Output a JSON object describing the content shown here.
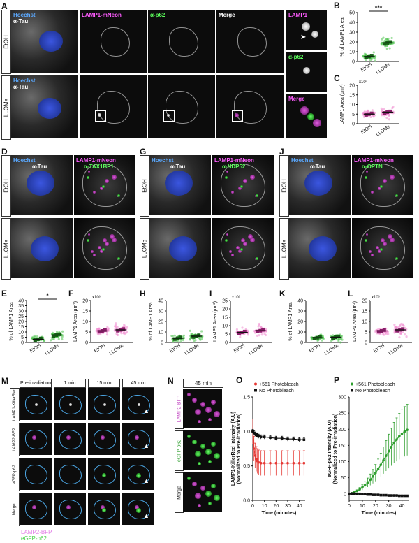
{
  "panels": {
    "A": {
      "letter": "A",
      "rows": [
        "EtOH",
        "LLOMe"
      ],
      "col1": {
        "a": "Hoechst",
        "b": "α-Tau"
      },
      "col2": "LAMP1-mNeon",
      "col3": "α-p62",
      "col4": "Merge",
      "inset": {
        "top": "LAMP1",
        "mid": "α-p62",
        "bot": "Merge"
      }
    },
    "D": {
      "letter": "D",
      "rows": [
        "EtOH",
        "LLOMe"
      ],
      "col1a": "Hoechst",
      "col1b": "α-Tau",
      "col2a": "LAMP1-mNeon",
      "col2b": "α-TAX1BP1"
    },
    "G": {
      "letter": "G",
      "rows": [
        "EtOH",
        "LLOMe"
      ],
      "col1a": "Hoechst",
      "col1b": "α-Tau",
      "col2a": "LAMP1-mNeon",
      "col2b": "α-NDP52"
    },
    "J": {
      "letter": "J",
      "rows": [
        "EtOH",
        "LLOMe"
      ],
      "col1a": "Hoechst",
      "col1b": "α-Tau",
      "col2a": "LAMP1-mNeon",
      "col2b": "α-OPTN"
    },
    "M": {
      "letter": "M",
      "cols": [
        "Pre-irradiation",
        "1 min",
        "15 min",
        "45 min"
      ],
      "rows": [
        "LAMP1-KillerRed",
        "LAMP2-BFP",
        "eGFP-p62",
        "Merge"
      ],
      "legend_a": "LAMP2-BFP",
      "legend_b": "eGFP-p62"
    },
    "N": {
      "letter": "N",
      "time": "45 min",
      "rows": [
        "LAMP2-BFP",
        "eGFP-p62",
        "Merge"
      ]
    }
  },
  "chart_data": [
    {
      "id": "B",
      "type": "scatter",
      "ylabel": "% of LAMP1 Area",
      "categories": [
        "EtOH",
        "LLOMe"
      ],
      "ylim": [
        0,
        50
      ],
      "yticks": [
        0,
        10,
        20,
        30,
        40,
        50
      ],
      "means": [
        5,
        19
      ],
      "sig": "***"
    },
    {
      "id": "C",
      "type": "scatter",
      "ylabel": "LAMP1 Area (μm²)",
      "exponent": "x10³",
      "categories": [
        "EtOH",
        "LLOMe"
      ],
      "ylim": [
        0,
        20
      ],
      "yticks": [
        0,
        5,
        10,
        15,
        20
      ],
      "means": [
        5,
        6
      ]
    },
    {
      "id": "E",
      "type": "scatter",
      "ylabel": "% of LAMP1 Area",
      "categories": [
        "EtOH",
        "LLOMe"
      ],
      "ylim": [
        0,
        40
      ],
      "yticks": [
        0,
        5,
        10,
        15,
        20,
        25,
        30,
        35,
        40
      ],
      "means": [
        3,
        7
      ],
      "sig": "*"
    },
    {
      "id": "F",
      "type": "scatter",
      "ylabel": "LAMP1 Area (μm²)",
      "exponent": "x10³",
      "categories": [
        "EtOH",
        "LLOMe"
      ],
      "ylim": [
        0,
        20
      ],
      "yticks": [
        0,
        5,
        10,
        15,
        20
      ],
      "means": [
        5.5,
        6
      ]
    },
    {
      "id": "H",
      "type": "scatter",
      "ylabel": "% of LAMP1 Area",
      "categories": [
        "EtOH",
        "LLOMe"
      ],
      "ylim": [
        0,
        40
      ],
      "yticks": [
        0,
        10,
        20,
        30,
        40
      ],
      "means": [
        4,
        6
      ]
    },
    {
      "id": "I",
      "type": "scatter",
      "ylabel": "LAMP1 Area (μm²)",
      "exponent": "x10³",
      "categories": [
        "EtOH",
        "LLOMe"
      ],
      "ylim": [
        0,
        25
      ],
      "yticks": [
        0,
        5,
        10,
        15,
        20,
        25
      ],
      "means": [
        6,
        7
      ]
    },
    {
      "id": "K",
      "type": "scatter",
      "ylabel": "% of LAMP1 Area",
      "categories": [
        "EtOH",
        "LLOMe"
      ],
      "ylim": [
        0,
        40
      ],
      "yticks": [
        0,
        10,
        20,
        30,
        40
      ],
      "means": [
        4.5,
        5
      ]
    },
    {
      "id": "L",
      "type": "scatter",
      "ylabel": "LAMP1 Area (μm²)",
      "exponent": "x10³",
      "categories": [
        "EtOH",
        "LLOMe"
      ],
      "ylim": [
        0,
        20
      ],
      "yticks": [
        0,
        5,
        10,
        15,
        20
      ],
      "means": [
        5.5,
        6
      ]
    },
    {
      "id": "O",
      "type": "line",
      "ylabel": "LAMP1-KillerRed Intensity (A.U)",
      "ylabel2": "(Normalized to Pre-irradiation)",
      "xlabel": "Time (minutes)",
      "xlim": [
        0,
        45
      ],
      "xticks": [
        0,
        10,
        20,
        30,
        40
      ],
      "ylim": [
        0,
        1.5
      ],
      "yticks": [
        0.0,
        0.5,
        1.0,
        1.5
      ],
      "series": [
        {
          "name": "+561 Photobleach",
          "color": "#e53935",
          "x": [
            0,
            1,
            2,
            3,
            4,
            5,
            7,
            10,
            15,
            20,
            25,
            30,
            35,
            40,
            44
          ],
          "y": [
            1.0,
            0.75,
            0.65,
            0.6,
            0.57,
            0.55,
            0.54,
            0.54,
            0.54,
            0.54,
            0.54,
            0.54,
            0.54,
            0.54,
            0.54
          ],
          "err": 0.18
        },
        {
          "name": "No Photobleach",
          "color": "#111111",
          "x": [
            0,
            1,
            2,
            3,
            4,
            5,
            7,
            10,
            15,
            20,
            25,
            30,
            35,
            40,
            44
          ],
          "y": [
            1.0,
            0.98,
            0.96,
            0.95,
            0.94,
            0.93,
            0.92,
            0.92,
            0.91,
            0.9,
            0.9,
            0.89,
            0.89,
            0.88,
            0.88
          ],
          "err": 0.03
        }
      ]
    },
    {
      "id": "P",
      "type": "line",
      "ylabel": "eGFP-p62 Intensity (A.U)",
      "ylabel2": "(Normalized to Pre-irradiation)",
      "xlabel": "Time (minutes)",
      "xlim": [
        0,
        45
      ],
      "xticks": [
        0,
        10,
        20,
        30,
        40
      ],
      "ylim": [
        -20,
        300
      ],
      "yticks": [
        0,
        50,
        100,
        150,
        200,
        250,
        300
      ],
      "series": [
        {
          "name": "+561 Photobleach",
          "color": "#2e9e2e",
          "x": [
            0,
            2,
            4,
            6,
            8,
            10,
            12,
            14,
            16,
            18,
            20,
            22,
            24,
            26,
            28,
            30,
            32,
            34,
            36,
            38,
            40,
            42,
            44
          ],
          "y": [
            0,
            2,
            5,
            9,
            14,
            20,
            27,
            35,
            44,
            54,
            65,
            77,
            90,
            104,
            118,
            132,
            145,
            158,
            168,
            178,
            186,
            193,
            198
          ],
          "errfrac": 0.4
        },
        {
          "name": "No Photobleach",
          "color": "#111111",
          "x": [
            0,
            2,
            4,
            6,
            8,
            10,
            12,
            14,
            16,
            18,
            20,
            22,
            24,
            26,
            28,
            30,
            32,
            34,
            36,
            38,
            40,
            42,
            44
          ],
          "y": [
            0,
            1,
            1,
            0,
            0,
            -1,
            -1,
            -2,
            -2,
            -3,
            -3,
            -3,
            -4,
            -4,
            -4,
            -5,
            -5,
            -5,
            -5,
            -6,
            -6,
            -6,
            -6
          ],
          "errfrac": 0
        }
      ]
    }
  ]
}
